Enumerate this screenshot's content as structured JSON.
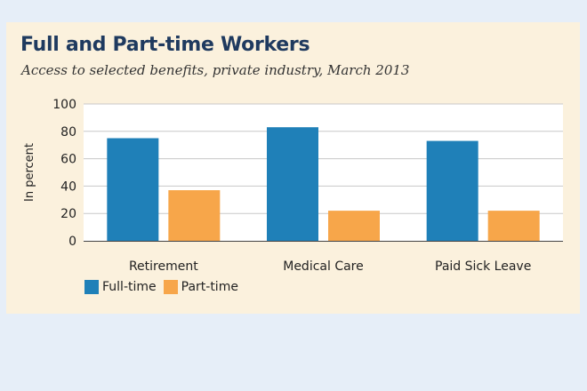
{
  "chart_data": {
    "type": "bar",
    "title": "Full and Part-time Workers",
    "subtitle": "Access to selected benefits, private industry, March 2013",
    "ylabel": "In percent",
    "xlabel": "",
    "ylim": [
      0,
      100
    ],
    "yticks": [
      0,
      20,
      40,
      60,
      80,
      100
    ],
    "categories": [
      "Retirement",
      "Medical Care",
      "Paid Sick Leave"
    ],
    "series": [
      {
        "name": "Full-time",
        "values": [
          75,
          83,
          73
        ],
        "color": "#1f80b8"
      },
      {
        "name": "Part-time",
        "values": [
          37,
          22,
          22
        ],
        "color": "#f7a64a"
      }
    ],
    "grid": true,
    "legend_position": "bottom-left"
  }
}
